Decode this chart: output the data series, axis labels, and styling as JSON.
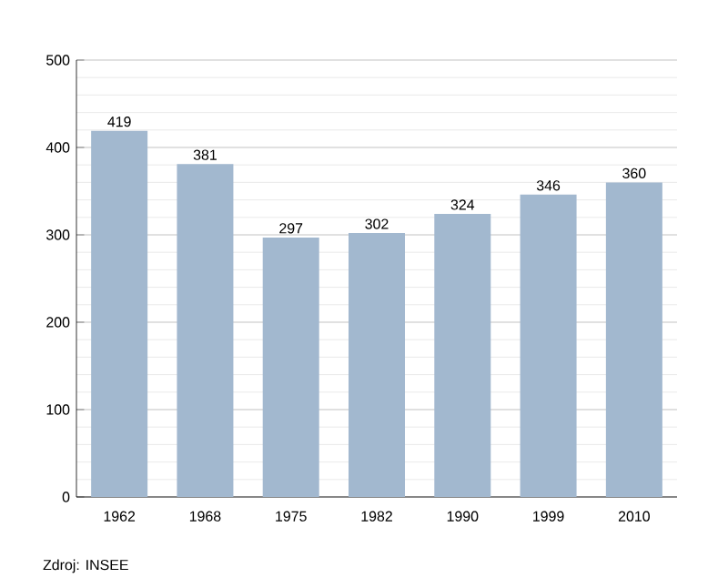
{
  "chart_data": {
    "type": "bar",
    "categories": [
      "1962",
      "1968",
      "1975",
      "1982",
      "1990",
      "1999",
      "2010"
    ],
    "values": [
      419,
      381,
      297,
      302,
      324,
      346,
      360
    ],
    "color": "#a2b8cf",
    "ylim": [
      0,
      500
    ],
    "yticks": [
      0,
      100,
      200,
      300,
      400,
      500
    ],
    "grid": "y",
    "data_labels": true,
    "annotations": [
      "Zdroj: INSEE"
    ]
  }
}
